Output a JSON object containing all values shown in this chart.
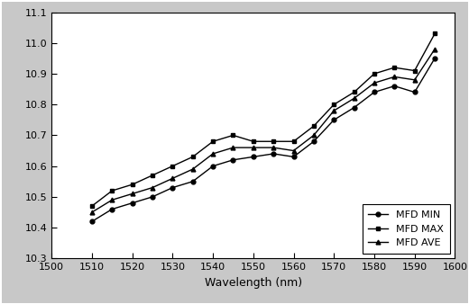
{
  "wavelengths": [
    1510,
    1515,
    1520,
    1525,
    1530,
    1535,
    1540,
    1545,
    1550,
    1555,
    1560,
    1565,
    1570,
    1575,
    1580,
    1585,
    1590,
    1595
  ],
  "mfd_min": [
    10.42,
    10.46,
    10.48,
    10.5,
    10.53,
    10.55,
    10.6,
    10.62,
    10.63,
    10.64,
    10.63,
    10.68,
    10.75,
    10.79,
    10.84,
    10.86,
    10.84,
    10.95
  ],
  "mfd_max": [
    10.47,
    10.52,
    10.54,
    10.57,
    10.6,
    10.63,
    10.68,
    10.7,
    10.68,
    10.68,
    10.68,
    10.73,
    10.8,
    10.84,
    10.9,
    10.92,
    10.91,
    11.03
  ],
  "mfd_ave": [
    10.45,
    10.49,
    10.51,
    10.53,
    10.56,
    10.59,
    10.64,
    10.66,
    10.66,
    10.66,
    10.65,
    10.7,
    10.78,
    10.82,
    10.87,
    10.89,
    10.88,
    10.98
  ],
  "xlabel": "Wavelength (nm)",
  "xlim": [
    1500,
    1600
  ],
  "ylim": [
    10.3,
    11.1
  ],
  "xticks": [
    1500,
    1510,
    1520,
    1530,
    1540,
    1550,
    1560,
    1570,
    1580,
    1590,
    1600
  ],
  "yticks": [
    10.3,
    10.4,
    10.5,
    10.6,
    10.7,
    10.8,
    10.9,
    11.0,
    11.1
  ],
  "legend_labels": [
    "MFD MIN",
    "MFD MAX",
    "MFD AVE"
  ],
  "line_color": "#000000",
  "plot_bg": "#ffffff",
  "outer_bg": "#c8c8c8",
  "marker_min": "o",
  "marker_max": "s",
  "marker_ave": "^",
  "figsize": [
    5.2,
    3.38
  ],
  "dpi": 100
}
